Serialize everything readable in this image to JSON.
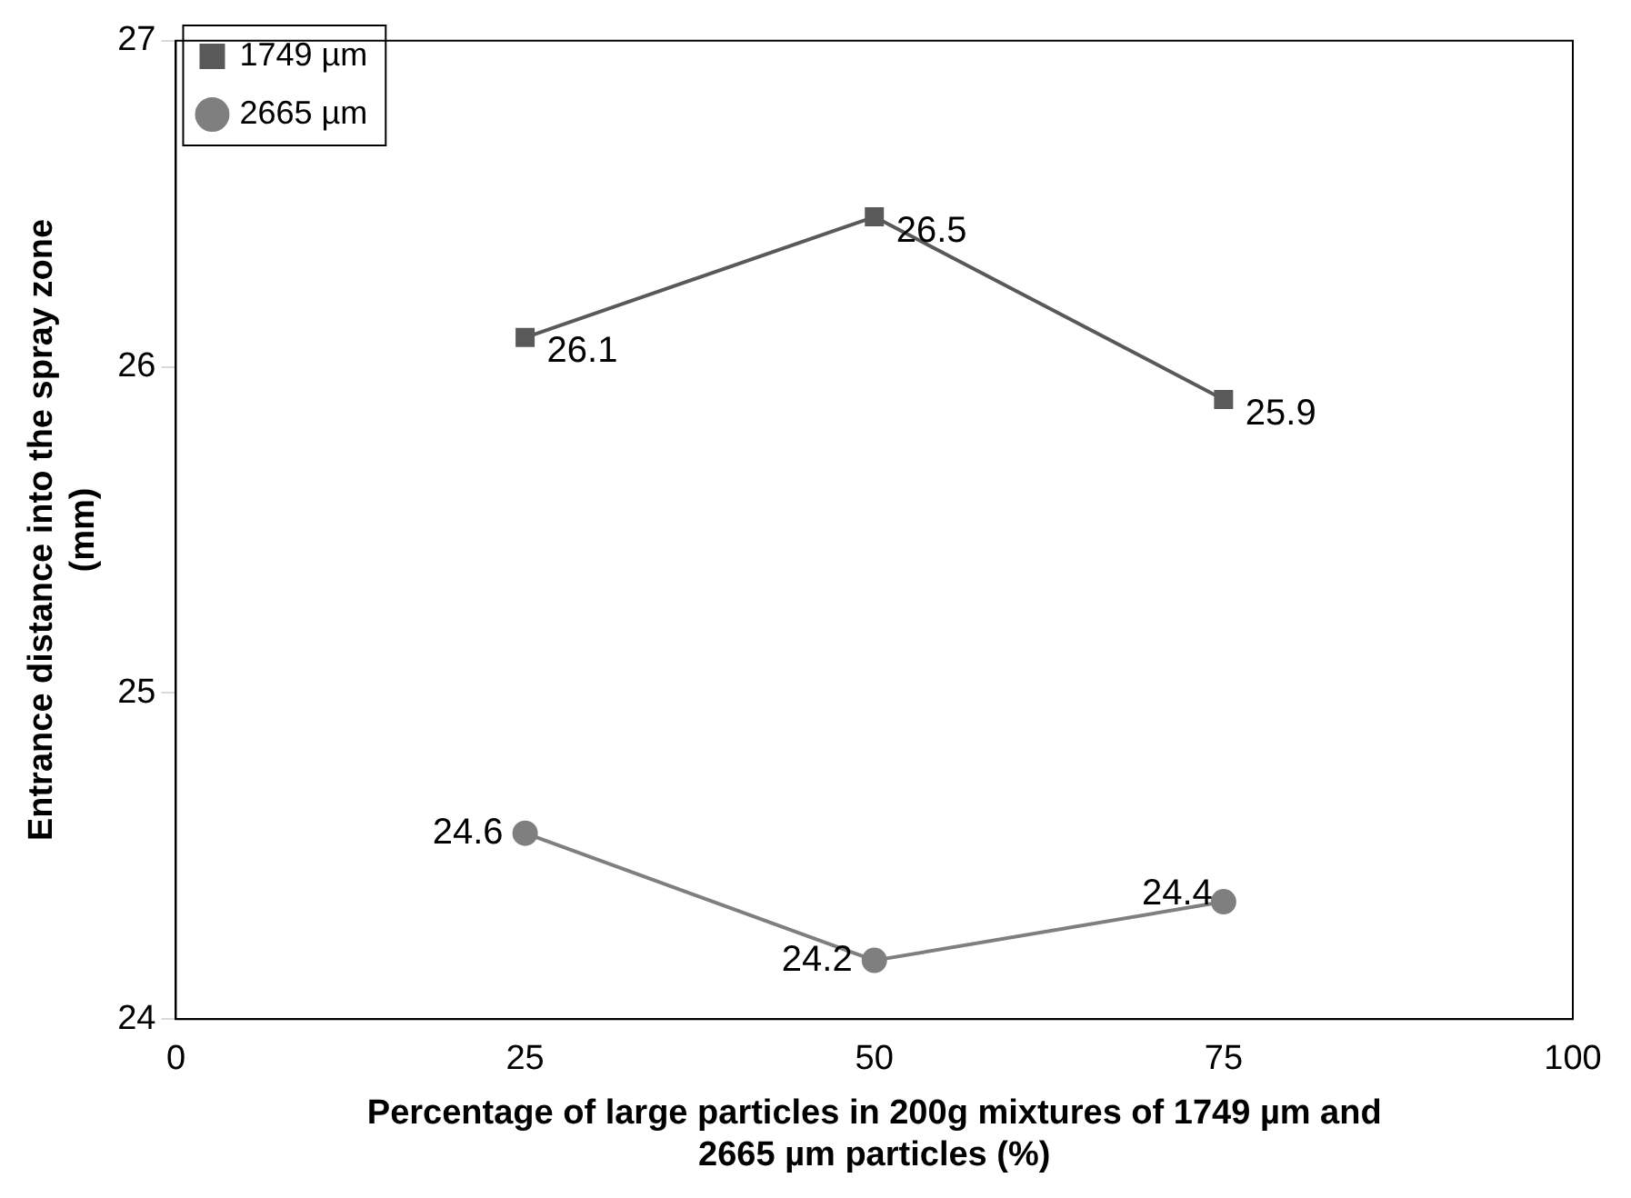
{
  "chart_data": {
    "type": "line",
    "xlabel": "Percentage of large particles in 200g mixtures of 1749 µm and 2665 µm particles (%)",
    "ylabel": "Entrance distance into the spray zone (mm)",
    "x": [
      25,
      50,
      75
    ],
    "series": [
      {
        "name": "1749 µm",
        "color": "#595959",
        "marker": "square",
        "values": [
          26.09,
          26.46,
          25.9
        ],
        "value_labels": [
          "26.1",
          "26.5",
          "25.9"
        ]
      },
      {
        "name": "2665 µm",
        "color": "#7f7f7f",
        "marker": "circle",
        "values": [
          24.57,
          24.18,
          24.36
        ],
        "value_labels": [
          "24.6",
          "24.2",
          "24.4"
        ]
      }
    ],
    "xlim": [
      0,
      100
    ],
    "xticks": [
      0,
      25,
      50,
      75,
      100
    ],
    "ylim": [
      24,
      27
    ],
    "yticks": [
      24,
      25,
      26,
      27
    ],
    "grid": false,
    "legend": "top left",
    "line_style": "solid"
  }
}
